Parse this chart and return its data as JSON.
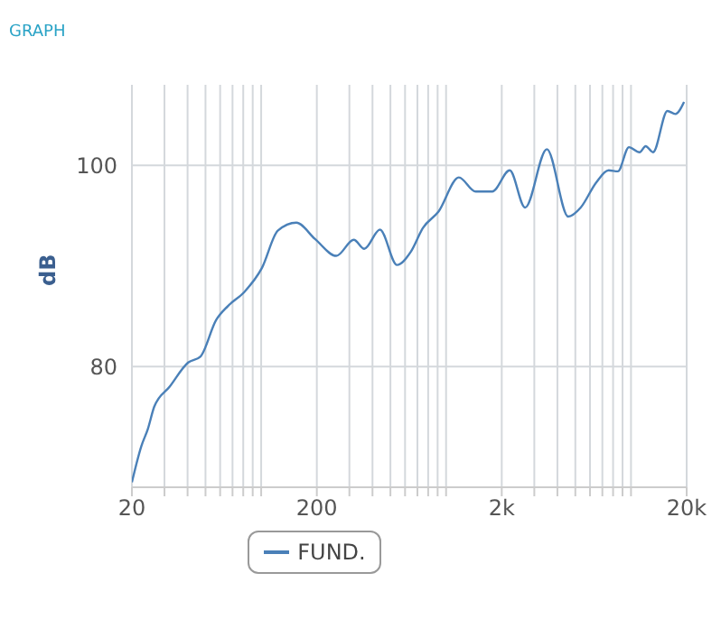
{
  "chart_data": {
    "type": "line",
    "title": "GRAPH",
    "ylabel": "dB",
    "log": "x",
    "xlim": [
      20,
      20000
    ],
    "xticks": [
      20,
      {
        "value": 30,
        "label": null
      },
      {
        "value": 40,
        "label": null
      },
      {
        "value": 50,
        "label": null
      },
      {
        "value": 60,
        "label": null
      },
      {
        "value": 70,
        "label": null
      },
      {
        "value": 80,
        "label": null
      },
      {
        "value": 90,
        "label": null
      },
      {
        "value": 100,
        "label": null
      },
      200,
      {
        "value": 300,
        "label": null
      },
      {
        "value": 400,
        "label": null
      },
      {
        "value": 500,
        "label": null
      },
      {
        "value": 600,
        "label": null
      },
      {
        "value": 700,
        "label": null
      },
      {
        "value": 800,
        "label": null
      },
      {
        "value": 900,
        "label": null
      },
      {
        "value": 1000,
        "label": null
      },
      {
        "value": 2000,
        "label": "2k"
      },
      {
        "value": 3000,
        "label": null
      },
      {
        "value": 4000,
        "label": null
      },
      {
        "value": 5000,
        "label": null
      },
      {
        "value": 6000,
        "label": null
      },
      {
        "value": 7000,
        "label": null
      },
      {
        "value": 8000,
        "label": null
      },
      {
        "value": 9000,
        "label": null
      },
      {
        "value": 10000,
        "label": null
      },
      {
        "value": 20000,
        "label": "20k"
      }
    ],
    "ylim": [
      68,
      108
    ],
    "yticks": [
      80,
      100
    ],
    "grid": true,
    "legend": "bottom",
    "marker": "none",
    "line_style": "solid",
    "x": [
      20,
      22.5,
      24.4,
      26.4,
      32,
      40.3,
      47,
      57,
      66,
      81,
      101,
      123,
      155,
      195,
      255,
      317,
      361,
      439,
      543,
      644,
      751,
      910,
      1172,
      1445,
      1778,
      2208,
      2675,
      3508,
      4580,
      5347,
      6486,
      7568,
      8490,
      9750,
      11130,
      12000,
      13160,
      15740,
      17380,
      19360
    ],
    "series": [
      {
        "name": "FUND.",
        "color": "#4a80b8",
        "values": [
          68.5,
          72.1,
          73.8,
          76.0,
          78.0,
          80.4,
          81.0,
          84.6,
          86.0,
          87.4,
          89.8,
          93.5,
          94.3,
          92.7,
          91.0,
          92.6,
          91.7,
          93.6,
          90.1,
          91.4,
          93.8,
          95.4,
          98.8,
          97.4,
          97.4,
          99.5,
          95.8,
          101.6,
          94.9,
          95.8,
          98.3,
          99.5,
          99.4,
          101.8,
          101.3,
          101.9,
          101.3,
          105.4,
          105.1,
          106.3
        ]
      }
    ]
  }
}
